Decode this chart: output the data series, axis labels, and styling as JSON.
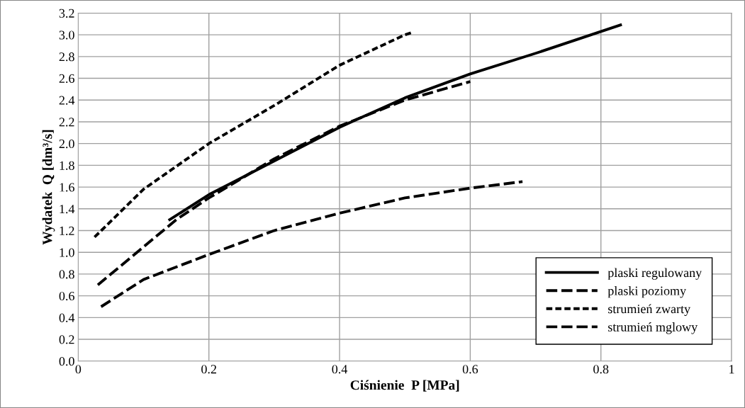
{
  "chart_data": {
    "type": "line",
    "xlabel": "Ciśnienie  P [MPa]",
    "ylabel": "Wydatek  Q [dm³/s]",
    "xlim": [
      0,
      1
    ],
    "xticks": [
      0,
      0.2,
      0.4,
      0.6,
      0.8,
      1
    ],
    "ylim": [
      0.0,
      3.2
    ],
    "yticks": [
      {
        "value": 0,
        "label": "0.0"
      },
      0.2,
      0.4,
      0.6,
      0.8,
      {
        "value": 1,
        "label": "1.0"
      },
      1.2,
      1.4,
      1.6,
      1.8,
      {
        "value": 2,
        "label": "2.0"
      },
      2.2,
      2.4,
      2.6,
      2.8,
      {
        "value": 3,
        "label": "3.0"
      },
      3.2
    ],
    "grid": true,
    "legend": "bottom right",
    "marker": "none",
    "series": [
      {
        "name": "plaski regulowany",
        "color": "#000000",
        "line_style": "solid",
        "x": [
          0.14,
          0.2,
          0.3,
          0.4,
          0.5,
          0.6,
          0.7,
          0.83
        ],
        "values": [
          1.3,
          1.53,
          1.84,
          2.15,
          2.42,
          2.64,
          2.83,
          3.09
        ]
      },
      {
        "name": "plaski poziomy",
        "color": "#000000",
        "line_style": "dashed",
        "x": [
          0.03,
          0.1,
          0.15,
          0.2,
          0.3,
          0.4,
          0.5,
          0.6
        ],
        "values": [
          0.7,
          1.05,
          1.3,
          1.5,
          1.86,
          2.16,
          2.4,
          2.57
        ]
      },
      {
        "name": "strumień zwarty",
        "color": "#000000",
        "line_style": "dotted",
        "x": [
          0.025,
          0.1,
          0.2,
          0.3,
          0.4,
          0.5,
          0.51
        ],
        "values": [
          1.14,
          1.58,
          2.0,
          2.35,
          2.72,
          3.0,
          3.02
        ]
      },
      {
        "name": "strumień mglowy",
        "color": "#000000",
        "line_style": "dashed",
        "x": [
          0.035,
          0.1,
          0.2,
          0.3,
          0.4,
          0.5,
          0.6,
          0.68
        ],
        "values": [
          0.5,
          0.75,
          0.98,
          1.2,
          1.36,
          1.5,
          1.59,
          1.65
        ]
      }
    ]
  }
}
